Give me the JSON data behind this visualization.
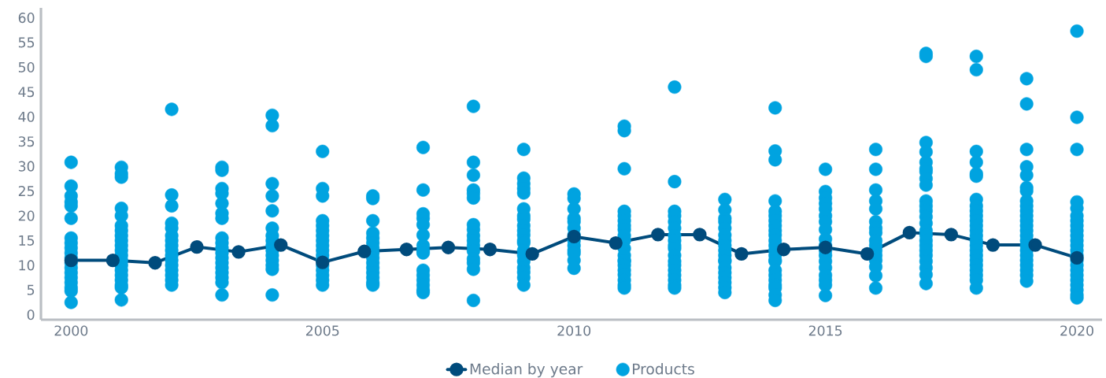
{
  "chart_data": {
    "type": "scatter",
    "xlim": [
      1999.4,
      2020.5
    ],
    "ylim": [
      -1,
      62
    ],
    "xticks": [
      2000,
      2005,
      2010,
      2015,
      2020
    ],
    "yticks": [
      0,
      5,
      10,
      15,
      20,
      25,
      30,
      35,
      40,
      45,
      50,
      55,
      60
    ],
    "legend": "bottom",
    "series": [
      {
        "name": "Median by year",
        "type": "line",
        "color": "#004b7c",
        "marker": "circle",
        "line_style": "solid",
        "x": [
          2000,
          2000.83,
          2001.67,
          2002.5,
          2003.33,
          2004.17,
          2005,
          2005.83,
          2006.67,
          2007.5,
          2008.33,
          2009.17,
          2010,
          2010.83,
          2011.67,
          2012.5,
          2013.33,
          2014.17,
          2015,
          2015.83,
          2016.67,
          2017.5,
          2018.33,
          2019.17,
          2020
        ],
        "values": [
          11.0,
          11.0,
          10.5,
          13.7,
          12.7,
          14.1,
          10.6,
          12.8,
          13.2,
          13.6,
          13.2,
          12.3,
          15.8,
          14.5,
          16.2,
          16.2,
          12.3,
          13.2,
          13.6,
          12.3,
          16.6,
          16.2,
          14.1,
          14.1,
          11.5
        ]
      },
      {
        "name": "Products",
        "color": "#00a3e0",
        "marker": "circle",
        "x": [
          2000,
          2000,
          2000,
          2000,
          2000,
          2000,
          2000,
          2000,
          2000,
          2000,
          2000,
          2000,
          2000,
          2000,
          2000,
          2000,
          2000,
          2000,
          2000,
          2001,
          2001,
          2001,
          2001,
          2001,
          2001,
          2001,
          2001,
          2001,
          2001,
          2001,
          2001,
          2001,
          2001,
          2001,
          2001,
          2001,
          2001,
          2001,
          2001,
          2002,
          2002,
          2002,
          2002,
          2002,
          2002,
          2002,
          2002,
          2002,
          2002,
          2002,
          2002,
          2002,
          2002,
          2002,
          2002,
          2003,
          2003,
          2003,
          2003,
          2003,
          2003,
          2003,
          2003,
          2003,
          2003,
          2003,
          2003,
          2003,
          2003,
          2003,
          2003,
          2003,
          2003,
          2004,
          2004,
          2004,
          2004,
          2004,
          2004,
          2004,
          2004,
          2004,
          2004,
          2004,
          2004,
          2004,
          2004,
          2004,
          2005,
          2005,
          2005,
          2005,
          2005,
          2005,
          2005,
          2005,
          2005,
          2005,
          2005,
          2005,
          2005,
          2005,
          2005,
          2005,
          2005,
          2006,
          2006,
          2006,
          2006,
          2006,
          2006,
          2006,
          2006,
          2006,
          2006,
          2006,
          2006,
          2006,
          2006,
          2006,
          2007,
          2007,
          2007,
          2007,
          2007,
          2007,
          2007,
          2007,
          2007,
          2007,
          2007,
          2007,
          2007,
          2007,
          2007,
          2008,
          2008,
          2008,
          2008,
          2008,
          2008,
          2008,
          2008,
          2008,
          2008,
          2008,
          2008,
          2008,
          2008,
          2008,
          2008,
          2009,
          2009,
          2009,
          2009,
          2009,
          2009,
          2009,
          2009,
          2009,
          2009,
          2009,
          2009,
          2009,
          2009,
          2009,
          2009,
          2009,
          2009,
          2009,
          2009,
          2010,
          2010,
          2010,
          2010,
          2010,
          2010,
          2010,
          2010,
          2010,
          2010,
          2010,
          2010,
          2010,
          2011,
          2011,
          2011,
          2011,
          2011,
          2011,
          2011,
          2011,
          2011,
          2011,
          2011,
          2011,
          2011,
          2011,
          2011,
          2011,
          2011,
          2011,
          2011,
          2011,
          2012,
          2012,
          2012,
          2012,
          2012,
          2012,
          2012,
          2012,
          2012,
          2012,
          2012,
          2012,
          2012,
          2012,
          2012,
          2012,
          2012,
          2012,
          2013,
          2013,
          2013,
          2013,
          2013,
          2013,
          2013,
          2013,
          2013,
          2013,
          2013,
          2013,
          2013,
          2013,
          2013,
          2013,
          2013,
          2013,
          2014,
          2014,
          2014,
          2014,
          2014,
          2014,
          2014,
          2014,
          2014,
          2014,
          2014,
          2014,
          2014,
          2014,
          2014,
          2014,
          2014,
          2014,
          2014,
          2014,
          2014,
          2014,
          2014,
          2015,
          2015,
          2015,
          2015,
          2015,
          2015,
          2015,
          2015,
          2015,
          2015,
          2015,
          2015,
          2015,
          2015,
          2015,
          2015,
          2015,
          2015,
          2016,
          2016,
          2016,
          2016,
          2016,
          2016,
          2016,
          2016,
          2016,
          2016,
          2016,
          2016,
          2016,
          2016,
          2016,
          2016,
          2017,
          2017,
          2017,
          2017,
          2017,
          2017,
          2017,
          2017,
          2017,
          2017,
          2017,
          2017,
          2017,
          2017,
          2017,
          2017,
          2017,
          2017,
          2017,
          2017,
          2017,
          2017,
          2017,
          2017,
          2018,
          2018,
          2018,
          2018,
          2018,
          2018,
          2018,
          2018,
          2018,
          2018,
          2018,
          2018,
          2018,
          2018,
          2018,
          2018,
          2018,
          2018,
          2018,
          2018,
          2018,
          2018,
          2018,
          2018,
          2019,
          2019,
          2019,
          2019,
          2019,
          2019,
          2019,
          2019,
          2019,
          2019,
          2019,
          2019,
          2019,
          2019,
          2019,
          2019,
          2019,
          2019,
          2019,
          2019,
          2019,
          2019,
          2019,
          2019,
          2020,
          2020,
          2020,
          2020,
          2020,
          2020,
          2020,
          2020,
          2020,
          2020,
          2020,
          2020,
          2020,
          2020,
          2020,
          2020,
          2020,
          2020,
          2020,
          2020,
          2020,
          2020,
          2020
        ],
        "values": [
          30.8,
          26,
          24,
          22.8,
          22,
          19.5,
          15.5,
          14.5,
          13.5,
          12.5,
          11.5,
          10.5,
          9.5,
          8.5,
          7.5,
          6.5,
          5.5,
          4.8,
          2.5,
          29.8,
          28.5,
          27.8,
          21.5,
          20,
          18,
          17,
          16,
          15,
          14,
          13,
          12,
          11,
          10,
          9,
          8,
          7,
          6,
          5.5,
          3,
          41.5,
          24.2,
          22,
          18.5,
          17.5,
          16,
          15,
          14,
          13,
          12,
          11,
          10,
          9,
          8,
          7,
          6,
          29.8,
          29.2,
          25.5,
          24.5,
          22.5,
          20.5,
          19.5,
          15.5,
          14.5,
          13.5,
          12.5,
          11.5,
          10.5,
          9.5,
          8.5,
          7.5,
          6.5,
          4,
          40.3,
          38.2,
          26.5,
          24,
          21,
          17.5,
          16,
          15,
          14,
          13,
          12,
          11,
          10,
          9.2,
          4,
          33,
          25.5,
          24,
          19,
          18,
          17,
          16,
          15,
          14,
          13,
          12,
          11,
          10,
          9,
          8,
          7,
          6,
          24,
          23.5,
          19,
          16.5,
          15.5,
          14.5,
          13.5,
          12.5,
          11.5,
          10.5,
          9.5,
          8.5,
          7.5,
          6.5,
          6,
          33.8,
          25.2,
          20.4,
          19.5,
          18.2,
          16.1,
          14,
          13,
          12.5,
          9,
          8,
          7,
          6,
          5,
          4.5,
          42.1,
          30.8,
          28.2,
          25.2,
          24.5,
          23.6,
          18.2,
          17.2,
          16,
          15,
          14,
          12.9,
          11.3,
          10.5,
          9.2,
          2.9,
          33.4,
          27.6,
          26.5,
          25.5,
          24.6,
          21.4,
          20,
          19.3,
          18,
          17,
          16.1,
          15,
          14.5,
          13,
          12,
          10.8,
          9.5,
          8.6,
          7.5,
          6,
          24.4,
          23.5,
          21.4,
          19.5,
          18.8,
          17.5,
          16.1,
          15,
          14,
          13,
          12.4,
          11,
          9.4,
          38.1,
          37.2,
          29.5,
          20.9,
          20,
          19,
          18,
          17.2,
          16,
          15,
          13.4,
          12,
          11,
          10.8,
          10,
          9,
          8.1,
          7,
          6,
          5.4,
          46,
          26.9,
          20.9,
          20,
          18.8,
          17.5,
          16,
          15,
          14,
          13.4,
          12,
          10.8,
          10,
          9,
          8,
          7,
          6,
          5.4,
          23.3,
          21.2,
          19.5,
          18.8,
          17.5,
          16.1,
          15,
          14,
          13,
          12,
          11,
          10.8,
          9.5,
          8.5,
          7.5,
          6.5,
          5.5,
          4.5,
          41.8,
          33.1,
          31.3,
          23,
          20.9,
          20,
          19,
          18,
          17,
          16.1,
          15,
          14,
          13,
          12,
          11,
          10.8,
          9,
          8,
          7,
          6,
          5.4,
          4,
          2.9,
          29.4,
          24.9,
          23.6,
          22.5,
          21.4,
          20,
          18.8,
          17.2,
          15.3,
          14,
          13,
          12,
          10.8,
          9.5,
          8,
          7,
          6,
          3.9,
          33.4,
          29.4,
          25.2,
          23,
          21.4,
          18.8,
          17.5,
          16.6,
          15,
          14,
          13,
          12,
          11,
          9.7,
          7.9,
          5.4,
          52.8,
          52.2,
          34.8,
          32.9,
          30.8,
          29.5,
          28.9,
          27.5,
          26.2,
          23,
          22,
          21,
          19.8,
          18.5,
          17,
          16.1,
          15,
          14,
          13,
          12,
          10.8,
          9.5,
          8.1,
          6.3,
          52.2,
          49.5,
          33,
          30.8,
          28.5,
          28,
          23.3,
          22,
          21,
          20,
          19,
          18,
          17,
          16,
          15,
          14,
          13,
          12,
          11,
          10,
          9,
          8,
          7,
          5.4,
          47.7,
          42.6,
          33.4,
          29.9,
          28.2,
          25.7,
          25,
          23,
          22,
          21,
          20,
          19,
          18,
          17,
          16,
          15,
          14,
          13,
          12,
          11,
          10,
          9,
          8,
          6.8,
          57.3,
          39.9,
          33.4,
          22.8,
          21.5,
          20,
          19,
          18,
          17,
          16,
          15,
          14,
          13,
          12,
          11,
          10,
          9,
          8,
          7,
          6,
          5,
          4,
          3.4
        ]
      }
    ]
  }
}
